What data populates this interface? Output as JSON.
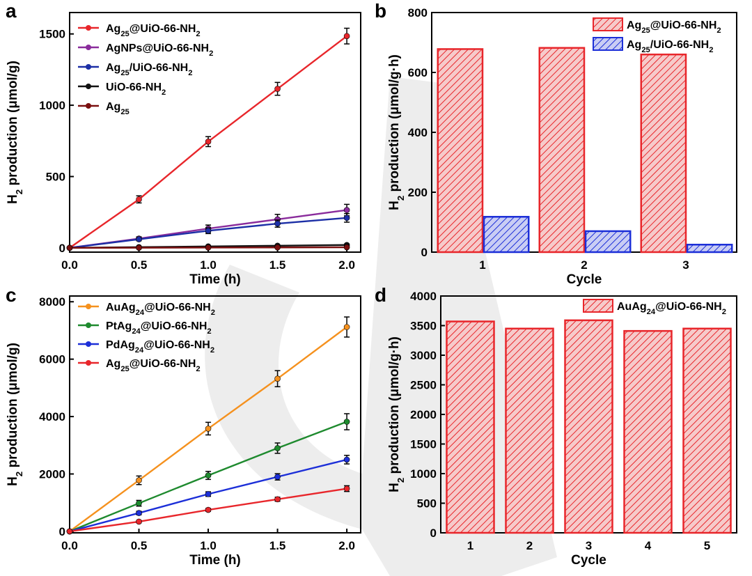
{
  "panels": [
    {
      "label": "a",
      "chart_data": {
        "type": "line",
        "xlabel": "Time (h)",
        "ylabel": "H_2 production (μmol/g)",
        "xlim": [
          0,
          2.1
        ],
        "ylim": [
          -30,
          1650
        ],
        "xticks": [
          0.0,
          0.5,
          1.0,
          1.5,
          2.0
        ],
        "yticks": [
          0,
          500,
          1000,
          1500
        ],
        "xtick_labels": [
          "0.0",
          "0.5",
          "1.0",
          "1.5",
          "2.0"
        ],
        "ytick_labels": [
          "0",
          "500",
          "1000",
          "1500"
        ],
        "legend": "top-left",
        "series": [
          {
            "name": "Ag_25@UiO-66-NH_2",
            "color": "#e8262b",
            "x": [
              0,
              0.5,
              1.0,
              1.5,
              2.0
            ],
            "y": [
              0,
              340,
              745,
              1115,
              1485
            ],
            "err": [
              0,
              25,
              35,
              45,
              55
            ]
          },
          {
            "name": "AgNPs@UiO-66-NH_2",
            "color": "#8a2c9c",
            "x": [
              0,
              0.5,
              1.0,
              1.5,
              2.0
            ],
            "y": [
              0,
              65,
              135,
              200,
              265
            ],
            "err": [
              0,
              12,
              25,
              35,
              40
            ]
          },
          {
            "name": "Ag_25/UiO-66-NH_2",
            "color": "#1c2fa6",
            "x": [
              0,
              0.5,
              1.0,
              1.5,
              2.0
            ],
            "y": [
              0,
              60,
              120,
              170,
              210
            ],
            "err": [
              0,
              10,
              20,
              25,
              30
            ]
          },
          {
            "name": "UiO-66-NH_2",
            "color": "#111111",
            "x": [
              0,
              0.5,
              1.0,
              1.5,
              2.0
            ],
            "y": [
              0,
              5,
              10,
              15,
              20
            ],
            "err": [
              0,
              3,
              4,
              5,
              6
            ]
          },
          {
            "name": "Ag_25",
            "color": "#7a0f0f",
            "x": [
              0,
              0.5,
              1.0,
              1.5,
              2.0
            ],
            "y": [
              0,
              1,
              2,
              3,
              4
            ],
            "err": [
              0,
              1,
              2,
              2,
              2
            ]
          }
        ]
      }
    },
    {
      "label": "b",
      "chart_data": {
        "type": "bar",
        "xlabel": "Cycle",
        "ylabel": "H_2 production (μmol/g·h)",
        "categories": [
          "1",
          "2",
          "3"
        ],
        "ylim": [
          0,
          800
        ],
        "yticks": [
          0,
          200,
          400,
          600,
          800
        ],
        "ytick_labels": [
          "0",
          "200",
          "400",
          "600",
          "800"
        ],
        "legend": "top-right",
        "series": [
          {
            "name": "Ag_25@UiO-66-NH_2",
            "color": "#e8262b",
            "values": [
              678,
              682,
              660
            ]
          },
          {
            "name": "Ag_25/UiO-66-NH_2",
            "color": "#1c2fd8",
            "values": [
              118,
              70,
              25
            ]
          }
        ]
      }
    },
    {
      "label": "c",
      "chart_data": {
        "type": "line",
        "xlabel": "Time (h)",
        "ylabel": "H_2 production (μmol/g)",
        "xlim": [
          0,
          2.1
        ],
        "ylim": [
          -50,
          8200
        ],
        "xticks": [
          0.0,
          0.5,
          1.0,
          1.5,
          2.0
        ],
        "yticks": [
          0,
          2000,
          4000,
          6000,
          8000
        ],
        "xtick_labels": [
          "0.0",
          "0.5",
          "1.0",
          "1.5",
          "2.0"
        ],
        "ytick_labels": [
          "0",
          "2000",
          "4000",
          "6000",
          "8000"
        ],
        "legend": "top-left",
        "series": [
          {
            "name": "AuAg_24@UiO-66-NH_2",
            "color": "#f5911e",
            "x": [
              0,
              0.5,
              1.0,
              1.5,
              2.0
            ],
            "y": [
              0,
              1780,
              3580,
              5320,
              7120
            ],
            "err": [
              0,
              150,
              220,
              280,
              350
            ]
          },
          {
            "name": "PtAg_24@UiO-66-NH_2",
            "color": "#1e8a2e",
            "x": [
              0,
              0.5,
              1.0,
              1.5,
              2.0
            ],
            "y": [
              0,
              980,
              1950,
              2900,
              3820
            ],
            "err": [
              0,
              100,
              140,
              180,
              280
            ]
          },
          {
            "name": "PdAg_24@UiO-66-NH_2",
            "color": "#1c2fd8",
            "x": [
              0,
              0.5,
              1.0,
              1.5,
              2.0
            ],
            "y": [
              0,
              640,
              1300,
              1900,
              2500
            ],
            "err": [
              0,
              60,
              80,
              110,
              150
            ]
          },
          {
            "name": "Ag_25@UiO-66-NH_2",
            "color": "#e8262b",
            "x": [
              0,
              0.5,
              1.0,
              1.5,
              2.0
            ],
            "y": [
              0,
              340,
              750,
              1120,
              1490
            ],
            "err": [
              0,
              40,
              50,
              70,
              100
            ]
          }
        ]
      }
    },
    {
      "label": "d",
      "chart_data": {
        "type": "bar",
        "xlabel": "Cycle",
        "ylabel": "H_2 production (μmol/g·h)",
        "categories": [
          "1",
          "2",
          "3",
          "4",
          "5"
        ],
        "ylim": [
          0,
          4000
        ],
        "yticks": [
          0,
          500,
          1000,
          1500,
          2000,
          2500,
          3000,
          3500,
          4000
        ],
        "ytick_labels": [
          "0",
          "500",
          "1000",
          "1500",
          "2000",
          "2500",
          "3000",
          "3500",
          "4000"
        ],
        "legend": "top-right",
        "series": [
          {
            "name": "AuAg_24@UiO-66-NH_2",
            "color": "#e8262b",
            "values": [
              3570,
              3450,
              3590,
              3410,
              3450
            ]
          }
        ]
      }
    }
  ]
}
